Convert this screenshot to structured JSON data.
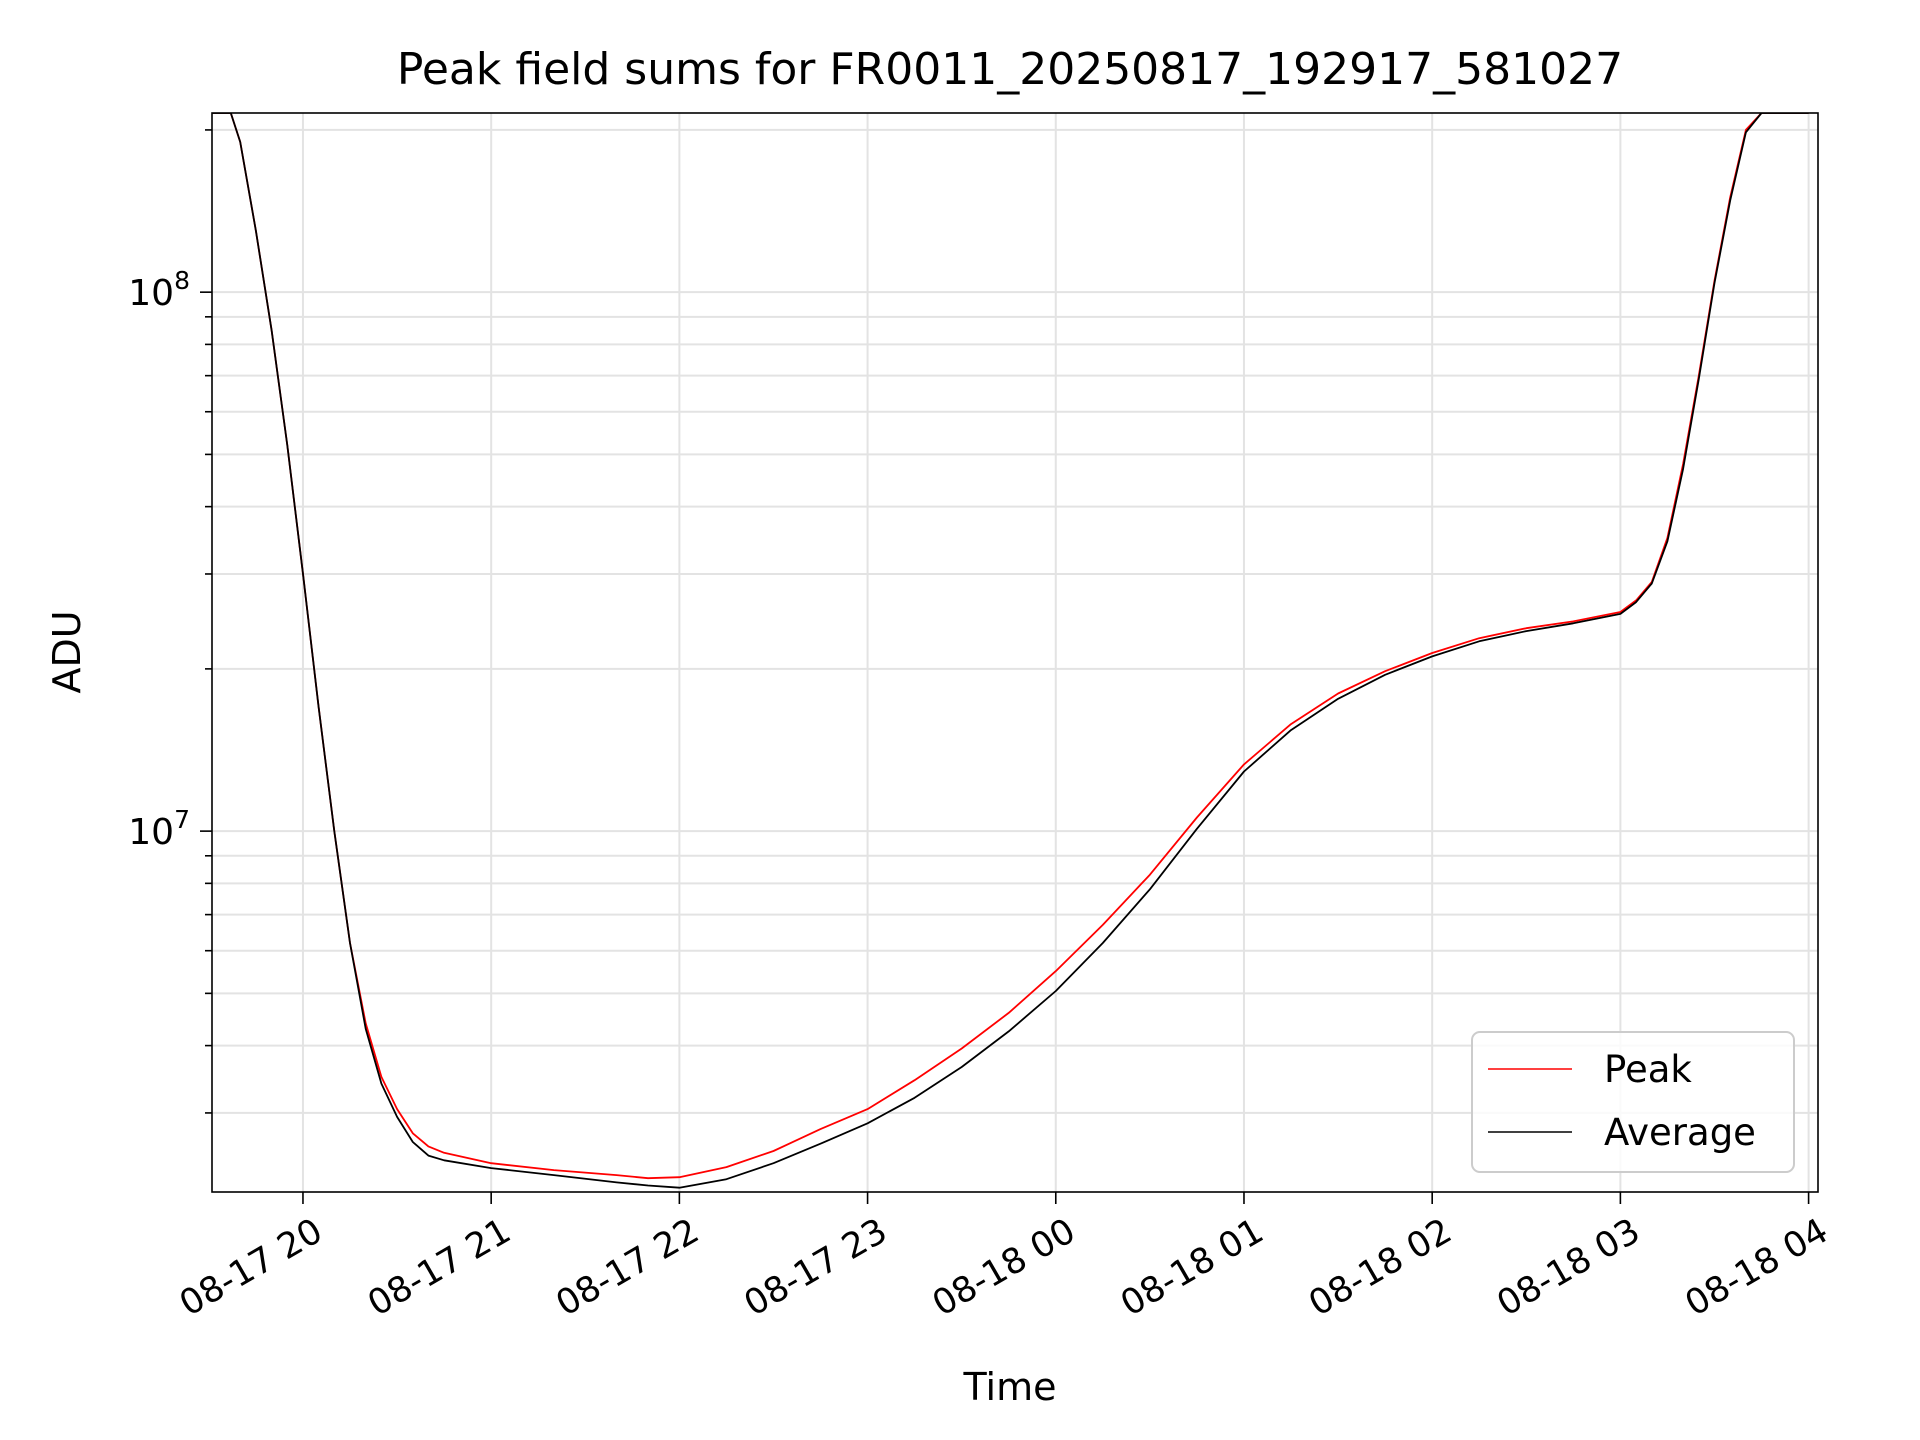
{
  "chart_data": {
    "type": "line",
    "title": "Peak field sums for FR0011_20250817_192917_581027",
    "xlabel": "Time",
    "ylabel": "ADU",
    "yscale": "log",
    "ylim": [
      2140000,
      215000000
    ],
    "xlim": [
      "2025-08-17 19:31",
      "2025-08-18 04:03"
    ],
    "x_ticks": [
      "08-17 20",
      "08-17 21",
      "08-17 22",
      "08-17 23",
      "08-18 00",
      "08-18 01",
      "08-18 02",
      "08-18 03",
      "08-18 04"
    ],
    "y_ticks": [
      {
        "base": "10",
        "exp": "8"
      },
      {
        "base": "10",
        "exp": "7"
      }
    ],
    "grid": true,
    "legend": "lower right",
    "series": [
      {
        "name": "Peak",
        "color": "#ff0000",
        "x": [
          "2025-08-17 19:31",
          "2025-08-17 19:37",
          "2025-08-17 19:40",
          "2025-08-17 19:45",
          "2025-08-17 19:50",
          "2025-08-17 19:55",
          "2025-08-17 20:00",
          "2025-08-17 20:05",
          "2025-08-17 20:10",
          "2025-08-17 20:15",
          "2025-08-17 20:20",
          "2025-08-17 20:25",
          "2025-08-17 20:30",
          "2025-08-17 20:35",
          "2025-08-17 20:40",
          "2025-08-17 20:45",
          "2025-08-17 21:00",
          "2025-08-17 21:20",
          "2025-08-17 21:40",
          "2025-08-17 21:50",
          "2025-08-17 22:00",
          "2025-08-17 22:15",
          "2025-08-17 22:30",
          "2025-08-17 22:45",
          "2025-08-17 23:00",
          "2025-08-17 23:15",
          "2025-08-17 23:30",
          "2025-08-17 23:45",
          "2025-08-18 00:00",
          "2025-08-18 00:15",
          "2025-08-18 00:30",
          "2025-08-18 00:45",
          "2025-08-18 01:00",
          "2025-08-18 01:15",
          "2025-08-18 01:30",
          "2025-08-18 01:45",
          "2025-08-18 02:00",
          "2025-08-18 02:15",
          "2025-08-18 02:30",
          "2025-08-18 02:45",
          "2025-08-18 03:00",
          "2025-08-18 03:05",
          "2025-08-18 03:10",
          "2025-08-18 03:15",
          "2025-08-18 03:20",
          "2025-08-18 03:25",
          "2025-08-18 03:30",
          "2025-08-18 03:35",
          "2025-08-18 03:40",
          "2025-08-18 03:45",
          "2025-08-18 04:00"
        ],
        "y": [
          215000000,
          215000000,
          190000000,
          130000000,
          85000000,
          52000000,
          30000000,
          17000000,
          10000000,
          6200000,
          4400000,
          3500000,
          3050000,
          2750000,
          2600000,
          2530000,
          2420000,
          2350000,
          2300000,
          2270000,
          2280000,
          2380000,
          2550000,
          2800000,
          3050000,
          3450000,
          3950000,
          4600000,
          5500000,
          6700000,
          8300000,
          10600000,
          13300000,
          15800000,
          18000000,
          19800000,
          21400000,
          22800000,
          23800000,
          24500000,
          25500000,
          26800000,
          29000000,
          35000000,
          48000000,
          70000000,
          105000000,
          150000000,
          200000000,
          215000000,
          215000000
        ]
      },
      {
        "name": "Average",
        "color": "#000000",
        "x": [
          "2025-08-17 19:31",
          "2025-08-17 19:37",
          "2025-08-17 19:40",
          "2025-08-17 19:45",
          "2025-08-17 19:50",
          "2025-08-17 19:55",
          "2025-08-17 20:00",
          "2025-08-17 20:05",
          "2025-08-17 20:10",
          "2025-08-17 20:15",
          "2025-08-17 20:20",
          "2025-08-17 20:25",
          "2025-08-17 20:30",
          "2025-08-17 20:35",
          "2025-08-17 20:40",
          "2025-08-17 20:45",
          "2025-08-17 21:00",
          "2025-08-17 21:20",
          "2025-08-17 21:40",
          "2025-08-17 21:50",
          "2025-08-17 22:00",
          "2025-08-17 22:15",
          "2025-08-17 22:30",
          "2025-08-17 22:45",
          "2025-08-17 23:00",
          "2025-08-17 23:15",
          "2025-08-17 23:30",
          "2025-08-17 23:45",
          "2025-08-18 00:00",
          "2025-08-18 00:15",
          "2025-08-18 00:30",
          "2025-08-18 00:45",
          "2025-08-18 01:00",
          "2025-08-18 01:15",
          "2025-08-18 01:30",
          "2025-08-18 01:45",
          "2025-08-18 02:00",
          "2025-08-18 02:15",
          "2025-08-18 02:30",
          "2025-08-18 02:45",
          "2025-08-18 03:00",
          "2025-08-18 03:05",
          "2025-08-18 03:10",
          "2025-08-18 03:15",
          "2025-08-18 03:20",
          "2025-08-18 03:25",
          "2025-08-18 03:30",
          "2025-08-18 03:35",
          "2025-08-18 03:40",
          "2025-08-18 03:45",
          "2025-08-18 04:00"
        ],
        "y": [
          215000000,
          215000000,
          190000000,
          130000000,
          85000000,
          52000000,
          30000000,
          17000000,
          10000000,
          6200000,
          4300000,
          3400000,
          2950000,
          2650000,
          2500000,
          2450000,
          2370000,
          2300000,
          2230000,
          2200000,
          2180000,
          2260000,
          2420000,
          2630000,
          2870000,
          3200000,
          3650000,
          4250000,
          5050000,
          6200000,
          7800000,
          10100000,
          12900000,
          15400000,
          17600000,
          19500000,
          21100000,
          22500000,
          23500000,
          24300000,
          25300000,
          26600000,
          28800000,
          34500000,
          47000000,
          69000000,
          104000000,
          148000000,
          198000000,
          215000000,
          215000000
        ]
      }
    ]
  }
}
